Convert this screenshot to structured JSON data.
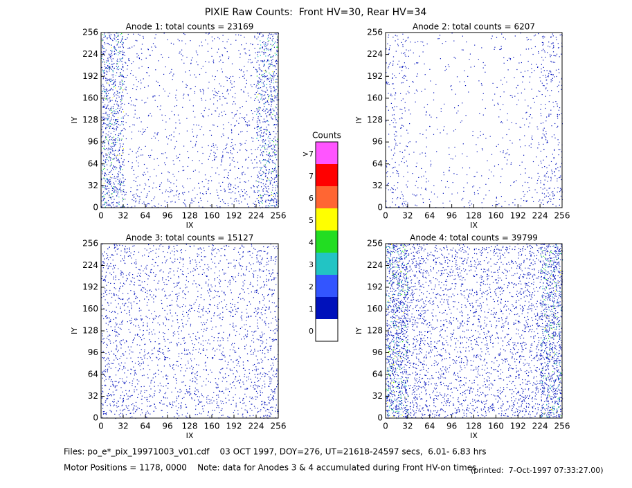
{
  "title": "PIXIE Raw Counts:  Front HV=30, Rear HV=34",
  "chart_data": [
    {
      "type": "heatmap",
      "title": "Anode 1: total counts = 23169",
      "xlabel": "IX",
      "ylabel": "IY",
      "xlim": [
        0,
        256
      ],
      "ylim": [
        0,
        256
      ],
      "xticks": [
        0,
        32,
        64,
        96,
        128,
        160,
        192,
        224,
        256
      ],
      "yticks": [
        0,
        32,
        64,
        96,
        128,
        160,
        192,
        224,
        256
      ],
      "density": [
        [
          0.35,
          0.07,
          0.04,
          0.04,
          0.05,
          0.05,
          0.07,
          0.3
        ],
        [
          0.35,
          0.07,
          0.04,
          0.04,
          0.05,
          0.06,
          0.07,
          0.32
        ],
        [
          0.35,
          0.07,
          0.04,
          0.05,
          0.05,
          0.12,
          0.07,
          0.33
        ],
        [
          0.33,
          0.06,
          0.04,
          0.04,
          0.05,
          0.06,
          0.07,
          0.32
        ],
        [
          0.33,
          0.06,
          0.04,
          0.04,
          0.05,
          0.06,
          0.07,
          0.3
        ],
        [
          0.33,
          0.06,
          0.04,
          0.04,
          0.05,
          0.14,
          0.07,
          0.3
        ],
        [
          0.35,
          0.07,
          0.05,
          0.05,
          0.05,
          0.07,
          0.08,
          0.3
        ],
        [
          0.38,
          0.12,
          0.1,
          0.1,
          0.1,
          0.1,
          0.12,
          0.35
        ]
      ]
    },
    {
      "type": "heatmap",
      "title": "Anode 2: total counts = 6207",
      "xlabel": "IX",
      "ylabel": "IY",
      "xlim": [
        0,
        256
      ],
      "ylim": [
        0,
        256
      ],
      "xticks": [
        0,
        32,
        64,
        96,
        128,
        160,
        192,
        224,
        256
      ],
      "yticks": [
        0,
        32,
        64,
        96,
        128,
        160,
        192,
        224,
        256
      ],
      "density": [
        [
          0.1,
          0.04,
          0.02,
          0.02,
          0.02,
          0.03,
          0.05,
          0.14
        ],
        [
          0.1,
          0.04,
          0.02,
          0.02,
          0.02,
          0.03,
          0.05,
          0.12
        ],
        [
          0.09,
          0.03,
          0.02,
          0.02,
          0.02,
          0.05,
          0.04,
          0.1
        ],
        [
          0.08,
          0.03,
          0.02,
          0.02,
          0.02,
          0.03,
          0.04,
          0.09
        ],
        [
          0.08,
          0.03,
          0.02,
          0.02,
          0.02,
          0.03,
          0.04,
          0.09
        ],
        [
          0.08,
          0.03,
          0.02,
          0.02,
          0.02,
          0.05,
          0.04,
          0.09
        ],
        [
          0.09,
          0.04,
          0.03,
          0.03,
          0.03,
          0.03,
          0.05,
          0.12
        ],
        [
          0.12,
          0.05,
          0.04,
          0.04,
          0.04,
          0.04,
          0.06,
          0.15
        ]
      ]
    },
    {
      "type": "heatmap",
      "title": "Anode 3: total counts = 15127",
      "xlabel": "IX",
      "ylabel": "IY",
      "xlim": [
        0,
        256
      ],
      "ylim": [
        0,
        256
      ],
      "xticks": [
        0,
        32,
        64,
        96,
        128,
        160,
        192,
        224,
        256
      ],
      "yticks": [
        0,
        32,
        64,
        96,
        128,
        160,
        192,
        224,
        256
      ],
      "density": [
        [
          0.16,
          0.12,
          0.1,
          0.11,
          0.11,
          0.1,
          0.11,
          0.16
        ],
        [
          0.16,
          0.12,
          0.1,
          0.11,
          0.11,
          0.1,
          0.11,
          0.15
        ],
        [
          0.15,
          0.11,
          0.1,
          0.1,
          0.1,
          0.1,
          0.1,
          0.14
        ],
        [
          0.15,
          0.11,
          0.1,
          0.1,
          0.1,
          0.1,
          0.1,
          0.14
        ],
        [
          0.15,
          0.11,
          0.1,
          0.1,
          0.1,
          0.1,
          0.1,
          0.14
        ],
        [
          0.16,
          0.12,
          0.11,
          0.1,
          0.1,
          0.1,
          0.11,
          0.15
        ],
        [
          0.18,
          0.13,
          0.12,
          0.11,
          0.11,
          0.11,
          0.12,
          0.17
        ],
        [
          0.2,
          0.14,
          0.12,
          0.12,
          0.12,
          0.12,
          0.13,
          0.2
        ]
      ]
    },
    {
      "type": "heatmap",
      "title": "Anode 4: total counts = 39799",
      "xlabel": "IX",
      "ylabel": "IY",
      "xlim": [
        0,
        256
      ],
      "ylim": [
        0,
        256
      ],
      "xticks": [
        0,
        32,
        64,
        96,
        128,
        160,
        192,
        224,
        256
      ],
      "yticks": [
        0,
        32,
        64,
        96,
        128,
        160,
        192,
        224,
        256
      ],
      "density": [
        [
          0.5,
          0.22,
          0.16,
          0.16,
          0.16,
          0.16,
          0.2,
          0.48
        ],
        [
          0.5,
          0.2,
          0.15,
          0.15,
          0.15,
          0.15,
          0.19,
          0.46
        ],
        [
          0.48,
          0.19,
          0.14,
          0.14,
          0.14,
          0.14,
          0.18,
          0.44
        ],
        [
          0.48,
          0.19,
          0.14,
          0.14,
          0.14,
          0.14,
          0.18,
          0.44
        ],
        [
          0.48,
          0.19,
          0.14,
          0.14,
          0.14,
          0.14,
          0.18,
          0.44
        ],
        [
          0.48,
          0.19,
          0.14,
          0.14,
          0.14,
          0.14,
          0.18,
          0.44
        ],
        [
          0.5,
          0.21,
          0.16,
          0.15,
          0.15,
          0.15,
          0.19,
          0.46
        ],
        [
          0.52,
          0.24,
          0.18,
          0.18,
          0.18,
          0.18,
          0.22,
          0.5
        ]
      ]
    },
    {
      "type": "colorbar",
      "title": "Counts",
      "categories": [
        "0",
        "1",
        "2",
        "3",
        "4",
        "5",
        "6",
        "7",
        ">7"
      ],
      "colors": [
        "#ffffff",
        "#0011bb",
        "#3355ff",
        "#22c4c4",
        "#22dd22",
        "#ffff00",
        "#ff6633",
        "#ff0000",
        "#ff55ff"
      ]
    }
  ],
  "footer": {
    "files": "Files: po_e*_pix_19971003_v01.cdf    03 OCT 1997, DOY=276, UT=21618-24597 secs,  6.01- 6.83 hrs",
    "motor": "Motor Positions = 1178, 0000    Note: data for Anodes 3 & 4 accumulated during Front HV-on times",
    "printed": "(printed:  7-Oct-1997 07:33:27.00)"
  }
}
